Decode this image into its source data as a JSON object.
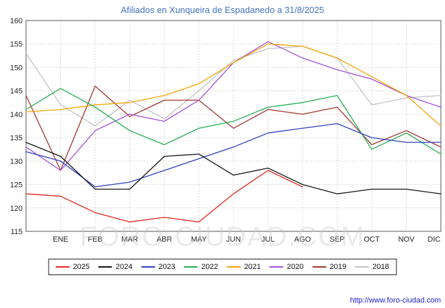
{
  "title": "Afiliados en Xunqueira de Espadanedo a 31/8/2025",
  "watermark": "FORO-CIUDAD.COM",
  "footer_url": "http://www.foro-ciudad.com",
  "chart_data": {
    "type": "line",
    "title": "Afiliados en Xunqueira de Espadanedo a 31/8/2025",
    "categories": [
      "ENE",
      "FEB",
      "MAR",
      "ABR",
      "MAY",
      "JUN",
      "JUL",
      "AGO",
      "SEP",
      "OCT",
      "NOV",
      "DIC"
    ],
    "note": "first value of each series is plotted at the left plot edge before the ENE tick; 2025 data ends in AGO (31/8/2025)",
    "ylim": [
      115,
      160
    ],
    "ystep": 5,
    "grid": true,
    "legend_position": "bottom",
    "series": [
      {
        "name": "2025",
        "color": "#e0241b",
        "values": [
          123,
          122.5,
          119,
          117,
          118,
          117,
          123,
          128,
          124.5
        ]
      },
      {
        "name": "2024",
        "color": "#111111",
        "values": [
          134,
          131,
          124,
          124,
          131,
          131.5,
          127,
          128.5,
          125,
          123,
          124,
          124,
          123
        ]
      },
      {
        "name": "2023",
        "color": "#2b3cc4",
        "values": [
          132,
          130,
          124.5,
          125.5,
          128,
          130.5,
          133,
          136,
          137,
          138,
          135,
          134,
          134
        ]
      },
      {
        "name": "2022",
        "color": "#1fae4e",
        "values": [
          141,
          145.5,
          141.5,
          136.5,
          133.5,
          137,
          138.5,
          141.5,
          142.5,
          144,
          132.5,
          136,
          131.5
        ]
      },
      {
        "name": "2021",
        "color": "#f4a300",
        "values": [
          140.5,
          141,
          142,
          142.5,
          144,
          146.5,
          151,
          155,
          154.5,
          152,
          148,
          144,
          137.5
        ]
      },
      {
        "name": "2020",
        "color": "#a24ede",
        "values": [
          133,
          128,
          136.5,
          140,
          138.5,
          143,
          151,
          155.5,
          152,
          149.5,
          147.5,
          144,
          141.5
        ]
      },
      {
        "name": "2019",
        "color": "#a2352c",
        "values": [
          144,
          128,
          146,
          139.5,
          143,
          143,
          137,
          141,
          140,
          141.5,
          133.5,
          136.5,
          133
        ]
      },
      {
        "name": "2018",
        "color": "#c2c2c2",
        "values": [
          153,
          142,
          137.5,
          143,
          139,
          145,
          151.5,
          154,
          154.5,
          152,
          142,
          143.5,
          144
        ]
      }
    ]
  }
}
